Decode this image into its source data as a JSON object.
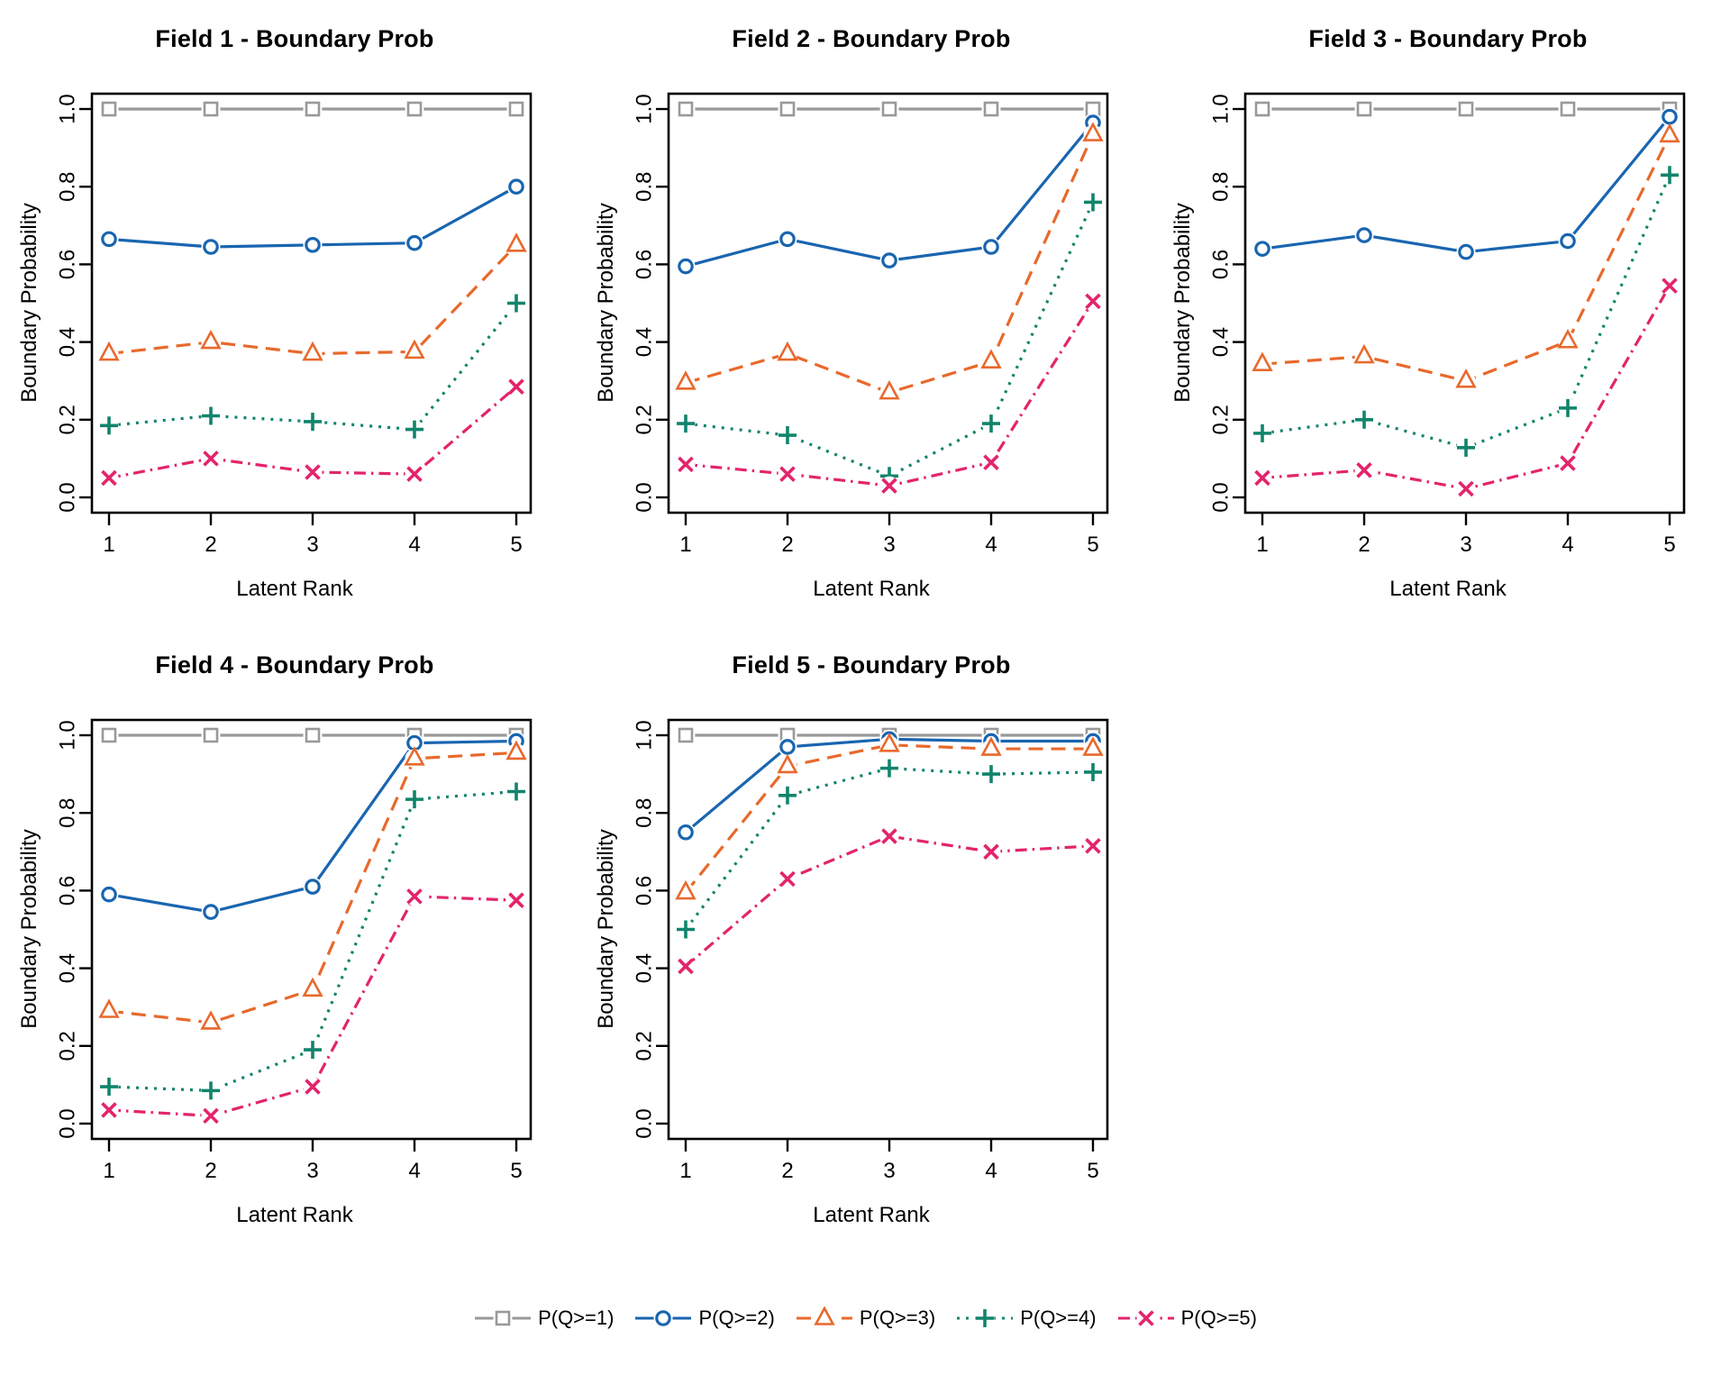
{
  "figure": {
    "background": "#ffffff",
    "text_color": "#000000"
  },
  "axis": {
    "xlabel": "Latent Rank",
    "ylabel": "Boundary Probability",
    "yticks": [
      "0.0",
      "0.2",
      "0.4",
      "0.6",
      "0.8",
      "1.0"
    ],
    "xticks": [
      "1",
      "2",
      "3",
      "4",
      "5"
    ]
  },
  "styles": {
    "series": [
      {
        "name": "P(Q>=1)",
        "color": "#999999",
        "marker": "square",
        "line": "solid"
      },
      {
        "name": "P(Q>=2)",
        "color": "#1965B0",
        "marker": "circle",
        "line": "solid"
      },
      {
        "name": "P(Q>=3)",
        "color": "#E8692C",
        "marker": "triangle",
        "line": "dashed"
      },
      {
        "name": "P(Q>=4)",
        "color": "#11846C",
        "marker": "plus",
        "line": "dotted"
      },
      {
        "name": "P(Q>=5)",
        "color": "#E3246B",
        "marker": "x",
        "line": "dashdot"
      }
    ]
  },
  "legend": {
    "entries": [
      {
        "label": "P(Q>=1)"
      },
      {
        "label": "P(Q>=2)"
      },
      {
        "label": "P(Q>=3)"
      },
      {
        "label": "P(Q>=4)"
      },
      {
        "label": "P(Q>=5)"
      }
    ]
  },
  "chart_data": [
    {
      "type": "line",
      "title": "Field 1 - Boundary Prob",
      "xlabel": "Latent Rank",
      "ylabel": "Boundary Probability",
      "x": [
        1,
        2,
        3,
        4,
        5
      ],
      "ylim": [
        0,
        1
      ],
      "grid": false,
      "series": [
        {
          "name": "P(Q>=1)",
          "values": [
            1.0,
            1.0,
            1.0,
            1.0,
            1.0
          ]
        },
        {
          "name": "P(Q>=2)",
          "values": [
            0.665,
            0.645,
            0.65,
            0.655,
            0.8
          ]
        },
        {
          "name": "P(Q>=3)",
          "values": [
            0.37,
            0.4,
            0.37,
            0.375,
            0.65
          ]
        },
        {
          "name": "P(Q>=4)",
          "values": [
            0.185,
            0.21,
            0.195,
            0.175,
            0.5
          ]
        },
        {
          "name": "P(Q>=5)",
          "values": [
            0.05,
            0.1,
            0.065,
            0.06,
            0.285
          ]
        }
      ]
    },
    {
      "type": "line",
      "title": "Field 2 - Boundary Prob",
      "xlabel": "Latent Rank",
      "ylabel": "Boundary Probability",
      "x": [
        1,
        2,
        3,
        4,
        5
      ],
      "ylim": [
        0,
        1
      ],
      "grid": false,
      "series": [
        {
          "name": "P(Q>=1)",
          "values": [
            1.0,
            1.0,
            1.0,
            1.0,
            1.0
          ]
        },
        {
          "name": "P(Q>=2)",
          "values": [
            0.595,
            0.665,
            0.61,
            0.645,
            0.965
          ]
        },
        {
          "name": "P(Q>=3)",
          "values": [
            0.295,
            0.37,
            0.27,
            0.35,
            0.935
          ]
        },
        {
          "name": "P(Q>=4)",
          "values": [
            0.19,
            0.16,
            0.055,
            0.19,
            0.76
          ]
        },
        {
          "name": "P(Q>=5)",
          "values": [
            0.085,
            0.06,
            0.03,
            0.09,
            0.505
          ]
        }
      ]
    },
    {
      "type": "line",
      "title": "Field 3 - Boundary Prob",
      "xlabel": "Latent Rank",
      "ylabel": "Boundary Probability",
      "x": [
        1,
        2,
        3,
        4,
        5
      ],
      "ylim": [
        0,
        1
      ],
      "grid": false,
      "series": [
        {
          "name": "P(Q>=1)",
          "values": [
            1.0,
            1.0,
            1.0,
            1.0,
            1.0
          ]
        },
        {
          "name": "P(Q>=2)",
          "values": [
            0.64,
            0.675,
            0.632,
            0.66,
            0.98
          ]
        },
        {
          "name": "P(Q>=3)",
          "values": [
            0.343,
            0.363,
            0.3,
            0.402,
            0.932
          ]
        },
        {
          "name": "P(Q>=4)",
          "values": [
            0.165,
            0.2,
            0.128,
            0.23,
            0.83
          ]
        },
        {
          "name": "P(Q>=5)",
          "values": [
            0.05,
            0.07,
            0.022,
            0.088,
            0.545
          ]
        }
      ]
    },
    {
      "type": "line",
      "title": "Field 4 - Boundary Prob",
      "xlabel": "Latent Rank",
      "ylabel": "Boundary Probability",
      "x": [
        1,
        2,
        3,
        4,
        5
      ],
      "ylim": [
        0,
        1
      ],
      "grid": false,
      "series": [
        {
          "name": "P(Q>=1)",
          "values": [
            1.0,
            1.0,
            1.0,
            1.0,
            1.0
          ]
        },
        {
          "name": "P(Q>=2)",
          "values": [
            0.59,
            0.545,
            0.61,
            0.98,
            0.985
          ]
        },
        {
          "name": "P(Q>=3)",
          "values": [
            0.29,
            0.26,
            0.345,
            0.94,
            0.955
          ]
        },
        {
          "name": "P(Q>=4)",
          "values": [
            0.095,
            0.085,
            0.19,
            0.835,
            0.855
          ]
        },
        {
          "name": "P(Q>=5)",
          "values": [
            0.035,
            0.02,
            0.095,
            0.585,
            0.575
          ]
        }
      ]
    },
    {
      "type": "line",
      "title": "Field 5 - Boundary Prob",
      "xlabel": "Latent Rank",
      "ylabel": "Boundary Probability",
      "x": [
        1,
        2,
        3,
        4,
        5
      ],
      "ylim": [
        0,
        1
      ],
      "grid": false,
      "series": [
        {
          "name": "P(Q>=1)",
          "values": [
            1.0,
            1.0,
            1.0,
            1.0,
            1.0
          ]
        },
        {
          "name": "P(Q>=2)",
          "values": [
            0.75,
            0.97,
            0.99,
            0.985,
            0.985
          ]
        },
        {
          "name": "P(Q>=3)",
          "values": [
            0.595,
            0.92,
            0.975,
            0.965,
            0.965
          ]
        },
        {
          "name": "P(Q>=4)",
          "values": [
            0.5,
            0.845,
            0.915,
            0.9,
            0.905
          ]
        },
        {
          "name": "P(Q>=5)",
          "values": [
            0.405,
            0.63,
            0.74,
            0.7,
            0.715
          ]
        }
      ]
    }
  ]
}
